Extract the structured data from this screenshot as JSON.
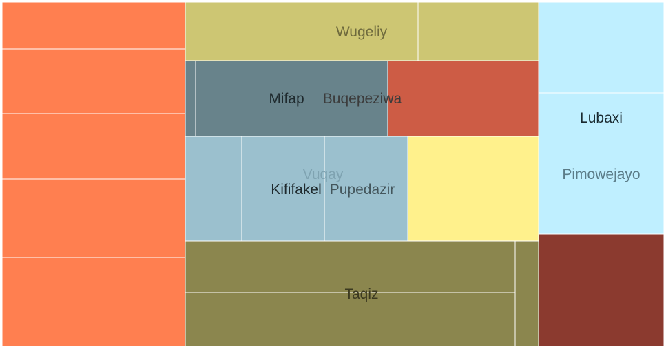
{
  "chart_data": {
    "type": "treemap",
    "groups": [
      {
        "name": "",
        "color": "#ff7f50",
        "cells": 5
      },
      {
        "name": "Wugeliy",
        "color": "#cdc673",
        "cells": 2
      },
      {
        "name": "Mifap",
        "color": "#68838b",
        "cells": 2
      },
      {
        "name": "Buqepeziwa",
        "color": "#cd5c45",
        "cells": 1
      },
      {
        "name": "Vuqay",
        "color": "#9bc0ce",
        "cells": 1
      },
      {
        "name": "Kififakel",
        "color": "#9bc0ce",
        "cells": 1
      },
      {
        "name": "Pupedazir",
        "color": "#9bc0ce",
        "cells": 1
      },
      {
        "name": "",
        "color": "#fff18c",
        "cells": 1
      },
      {
        "name": "Taqiz",
        "color": "#8b864e",
        "cells": 3
      },
      {
        "name": "Lubaxi",
        "color": "#bfefff",
        "cells": 1
      },
      {
        "name": "Pimowejayo",
        "color": "#bfefff",
        "cells": 1
      },
      {
        "name": "",
        "color": "#8b3a2f",
        "cells": 1
      }
    ]
  }
}
